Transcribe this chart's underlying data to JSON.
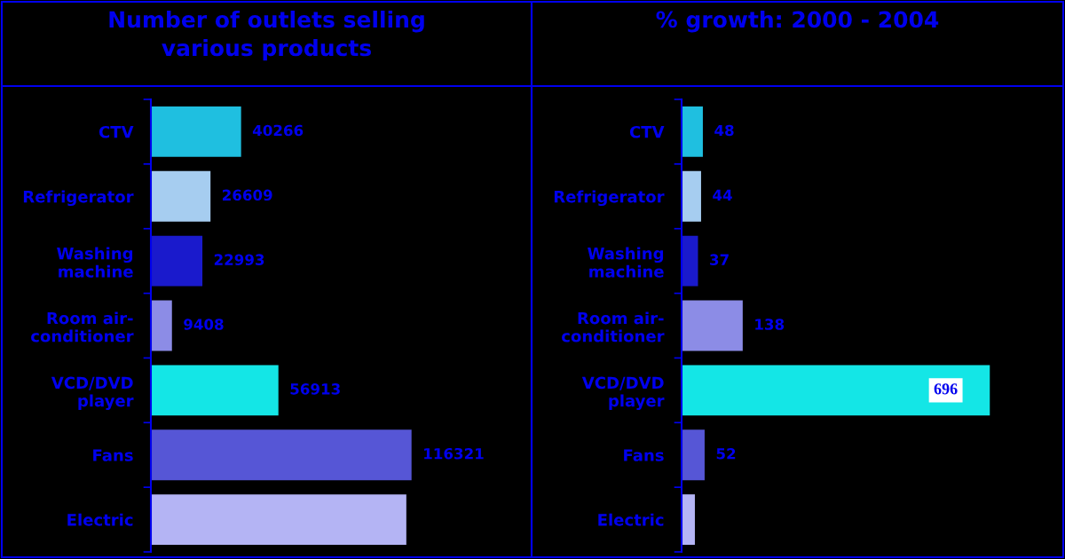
{
  "chart_data": [
    {
      "type": "bar",
      "orientation": "horizontal",
      "title": "Number of outlets selling\nvarious products",
      "categories": [
        "CTV",
        "Refrigerator",
        "Washing\nmachine",
        "Room air-\nconditioner",
        "VCD/DVD\nplayer",
        "Fans",
        "Electric"
      ],
      "values": [
        40266,
        26609,
        22993,
        9408,
        56913,
        116321,
        114000
      ],
      "colors": [
        "#1fbfe0",
        "#a6cdf0",
        "#1a1acc",
        "#8c8ce6",
        "#14e6e6",
        "#5656d6",
        "#b4b4f4"
      ],
      "value_labels": [
        "40266",
        "26609",
        "22993",
        "9408",
        "56913",
        "116321",
        null
      ],
      "tick_labels": "y"
    },
    {
      "type": "bar",
      "orientation": "horizontal",
      "title": "% growth: 2000 - 2004",
      "categories": [
        "CTV",
        "Refrigerator",
        "Washing\nmachine",
        "Room air-\nconditioner",
        "VCD/DVD\nplayer",
        "Fans",
        "Electric"
      ],
      "values": [
        48,
        44,
        37,
        138,
        696,
        52,
        30
      ],
      "colors": [
        "#1fbfe0",
        "#a6cdf0",
        "#1a1acc",
        "#8c8ce6",
        "#14e6e6",
        "#5656d6",
        "#b4b4f4"
      ],
      "value_labels": [
        "48",
        "44",
        "37",
        "138",
        "696",
        "52",
        null
      ],
      "tick_labels": "y"
    }
  ]
}
